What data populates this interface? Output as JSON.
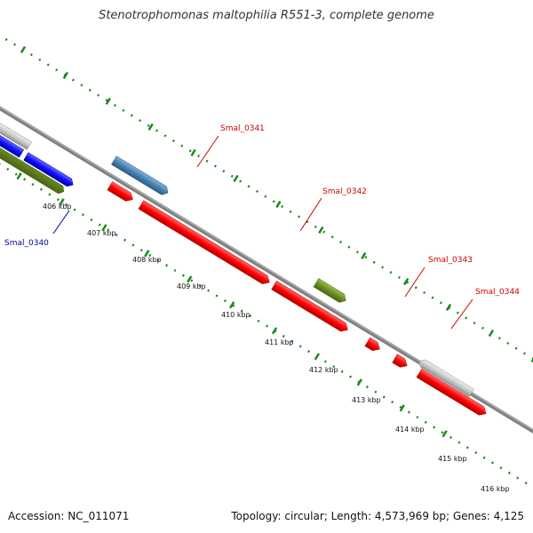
{
  "title": "Stenotrophomonas maltophilia R551-3, complete genome",
  "footer": {
    "accession": "Accession: NC_011071",
    "info": "Topology: circular; Length: 4,573,969 bp; Genes: 4,125"
  },
  "ticks": [
    {
      "label": "406 kbp"
    },
    {
      "label": "407 kbp"
    },
    {
      "label": "408 kbp"
    },
    {
      "label": "409 kbp"
    },
    {
      "label": "410 kbp"
    },
    {
      "label": "411 kbp"
    },
    {
      "label": "412 kbp"
    },
    {
      "label": "413 kbp"
    },
    {
      "label": "414 kbp"
    },
    {
      "label": "415 kbp"
    },
    {
      "label": "416 kbp"
    }
  ],
  "gene_labels": [
    {
      "label": "Smal_0340",
      "color": "#00009a"
    },
    {
      "label": "Smal_0341",
      "color": "#cc0000"
    },
    {
      "label": "Smal_0342",
      "color": "#cc0000"
    },
    {
      "label": "Smal_0343",
      "color": "#cc0000"
    },
    {
      "label": "Smal_0344",
      "color": "#cc0000"
    }
  ],
  "colors": {
    "blue_gene": "#1010ff",
    "red_gene": "#ff0000",
    "olive_gene": "#6b8e23",
    "steel_gene": "#4682b4",
    "gray_gene": "#c0c0c0",
    "backbone": "#808080",
    "ruler": "#1a8a1a"
  }
}
